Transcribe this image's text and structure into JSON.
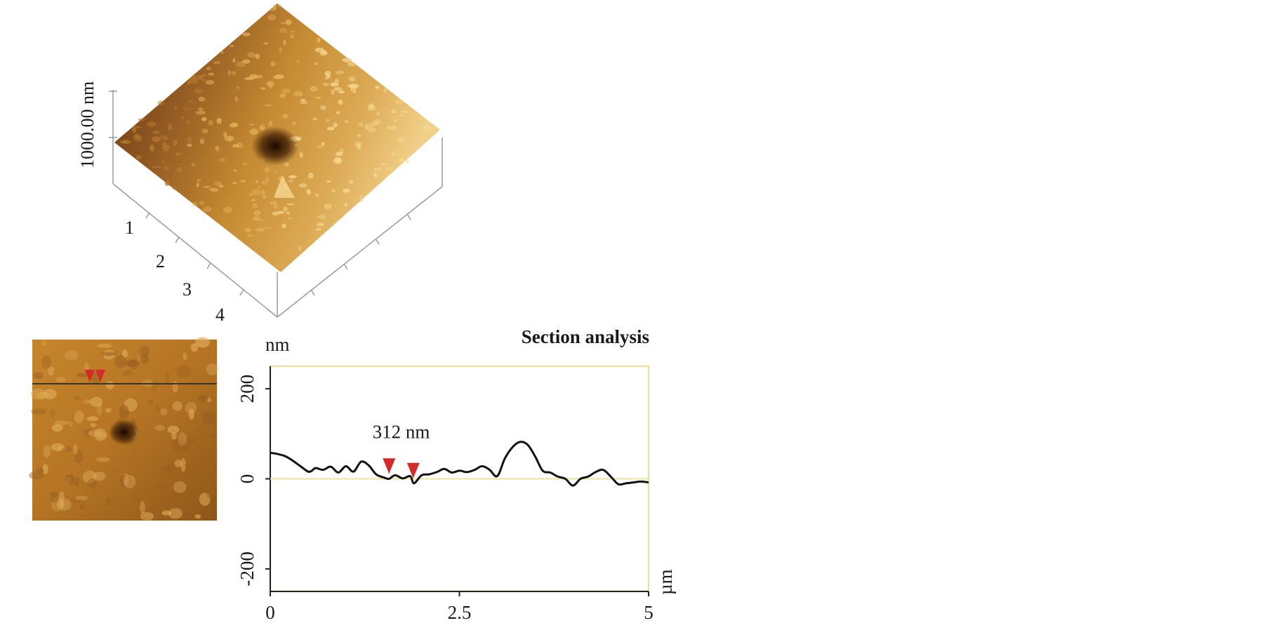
{
  "surface_3d": {
    "z_label": "1000.00 nm",
    "axis_ticks": [
      "1",
      "2",
      "3",
      "4"
    ],
    "colors": {
      "high": "#f3cc78",
      "mid": "#c98a2e",
      "low": "#6a3c12",
      "pit": "#1e0d03"
    }
  },
  "thumbnail": {
    "marker_color": "#d42a2a",
    "line_color": "#222222"
  },
  "chart_data": {
    "type": "line",
    "title": "Section analysis",
    "ylabel": "nm",
    "xlabel": "µm",
    "xlim": [
      0,
      5
    ],
    "ylim": [
      -250,
      250
    ],
    "x_ticks": [
      0,
      2.5,
      5
    ],
    "x_tick_labels": [
      "0",
      "2.5",
      "5"
    ],
    "y_ticks": [
      200,
      0,
      -200
    ],
    "y_tick_labels": [
      "200",
      "0",
      "-200"
    ],
    "frame_color": "#e9e3a2",
    "zero_line_color": "#e9e3a2",
    "line_color": "#111111",
    "marker_color": "#d42a2a",
    "annotation": "312 nm",
    "markers": [
      {
        "x": 1.57,
        "y": 5
      },
      {
        "x": 1.89,
        "y": -5
      }
    ],
    "series": [
      {
        "x": [
          0,
          0.1,
          0.2,
          0.3,
          0.4,
          0.5,
          0.55,
          0.6,
          0.7,
          0.8,
          0.9,
          1.0,
          1.1,
          1.2,
          1.3,
          1.4,
          1.5,
          1.57,
          1.65,
          1.75,
          1.85,
          1.9,
          2.0,
          2.1,
          2.2,
          2.3,
          2.4,
          2.5,
          2.6,
          2.7,
          2.8,
          2.9,
          3.0,
          3.1,
          3.2,
          3.3,
          3.4,
          3.5,
          3.6,
          3.7,
          3.8,
          3.9,
          4.0,
          4.1,
          4.2,
          4.3,
          4.4,
          4.5,
          4.6,
          4.7,
          4.8,
          4.9,
          5.0
        ],
        "values": [
          58,
          55,
          50,
          40,
          28,
          16,
          18,
          24,
          20,
          27,
          14,
          28,
          16,
          38,
          30,
          10,
          3,
          0,
          8,
          1,
          6,
          -10,
          8,
          10,
          15,
          22,
          14,
          18,
          15,
          20,
          28,
          20,
          6,
          45,
          70,
          82,
          76,
          50,
          18,
          14,
          5,
          0,
          -15,
          0,
          5,
          15,
          20,
          5,
          -12,
          -10,
          -8,
          -6,
          -8
        ]
      }
    ]
  }
}
